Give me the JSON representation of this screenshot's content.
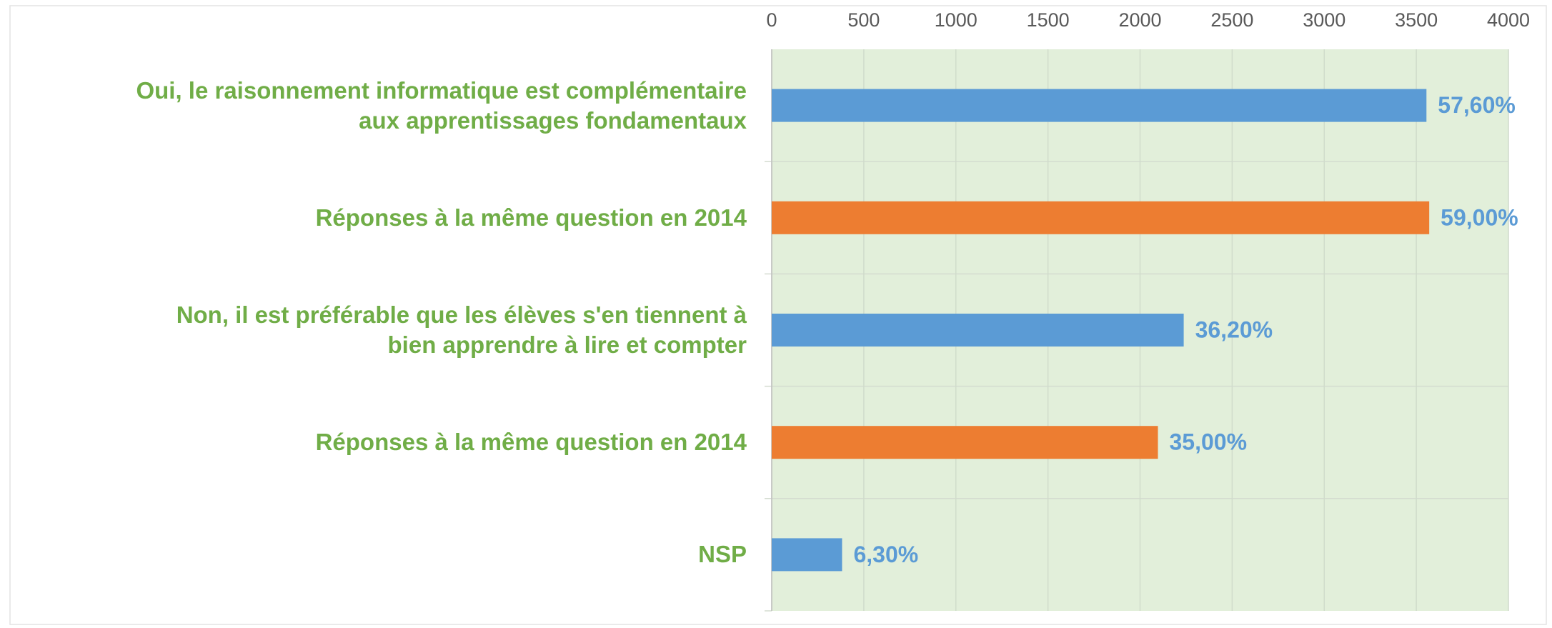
{
  "chart_data": {
    "type": "barh",
    "categories": [
      "Oui, le raisonnement informatique est complémentaire\naux apprentissages fondamentaux",
      "Réponses à la même question en 2014",
      "Non, il est préférable que les élèves s'en tiennent à\nbien apprendre à lire et compter",
      "Réponses à la même question en 2014",
      "NSP"
    ],
    "values": [
      3555,
      3570,
      2237,
      2097,
      382
    ],
    "value_labels": [
      "57,60%",
      "59,00%",
      "36,20%",
      "35,00%",
      "6,30%"
    ],
    "colors": [
      "#5b9bd5",
      "#ed7d31",
      "#5b9bd5",
      "#ed7d31",
      "#5b9bd5"
    ],
    "xlim": [
      0,
      4000
    ],
    "xticks": [
      0,
      500,
      1000,
      1500,
      2000,
      2500,
      3000,
      3500,
      4000
    ],
    "grid": true
  }
}
